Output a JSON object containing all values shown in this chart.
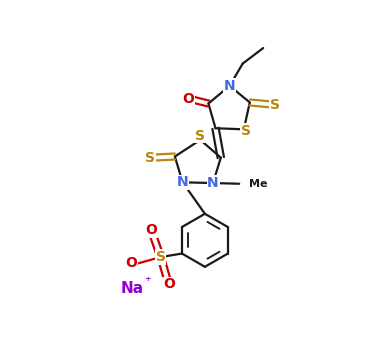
{
  "background_color": "#ffffff",
  "bond_color": "#1a1a1a",
  "sulfur_color": "#b8860b",
  "nitrogen_color": "#4169e1",
  "oxygen_color": "#cc0000",
  "sodium_color": "#9400d3",
  "line_width": 1.6,
  "font_size_atoms": 10,
  "font_size_small": 8,
  "fig_width": 3.78,
  "fig_height": 3.59,
  "dpi": 100,
  "xlim": [
    0,
    10
  ],
  "ylim": [
    0,
    10
  ]
}
